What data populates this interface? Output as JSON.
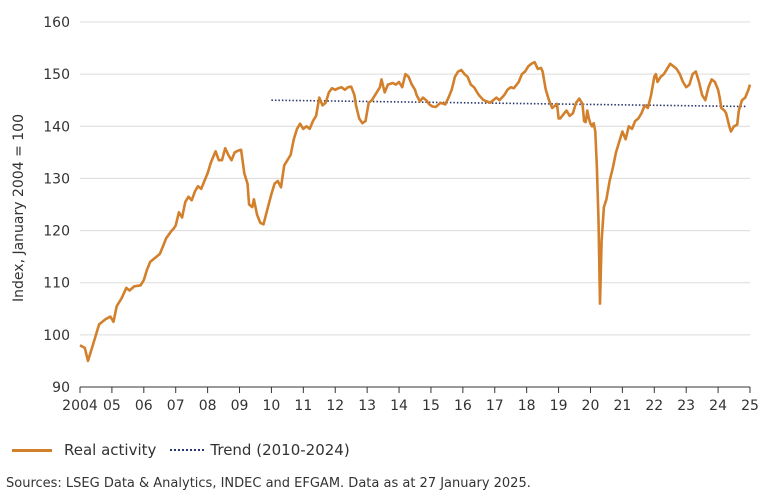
{
  "chart_data": {
    "type": "line",
    "title": "",
    "xlabel": "",
    "ylabel": "Index, January 2004 = 100",
    "ylim": [
      90,
      160
    ],
    "yticks": [
      90,
      100,
      110,
      120,
      130,
      140,
      150,
      160
    ],
    "xlim": [
      2004,
      2025
    ],
    "x_tick_labels": [
      "2004",
      "05",
      "06",
      "07",
      "08",
      "09",
      "10",
      "11",
      "12",
      "13",
      "14",
      "15",
      "16",
      "17",
      "18",
      "19",
      "20",
      "21",
      "22",
      "23",
      "24",
      "25"
    ],
    "grid": "horizontal",
    "legend_position": "bottom-left",
    "series": [
      {
        "name": "Real activity",
        "color": "#d3802c",
        "style": "solid",
        "points": [
          [
            2004.0,
            98
          ],
          [
            2004.15,
            97.5
          ],
          [
            2004.25,
            95
          ],
          [
            2004.4,
            98
          ],
          [
            2004.6,
            102
          ],
          [
            2004.8,
            103
          ],
          [
            2004.95,
            103.5
          ],
          [
            2005.05,
            102.5
          ],
          [
            2005.15,
            105.5
          ],
          [
            2005.3,
            107
          ],
          [
            2005.45,
            109
          ],
          [
            2005.55,
            108.5
          ],
          [
            2005.7,
            109.3
          ],
          [
            2005.9,
            109.5
          ],
          [
            2006.0,
            110.5
          ],
          [
            2006.1,
            112.5
          ],
          [
            2006.2,
            114
          ],
          [
            2006.3,
            114.5
          ],
          [
            2006.4,
            115
          ],
          [
            2006.5,
            115.5
          ],
          [
            2006.6,
            117
          ],
          [
            2006.7,
            118.5
          ],
          [
            2006.85,
            119.8
          ],
          [
            2006.95,
            120.5
          ],
          [
            2007.0,
            121
          ],
          [
            2007.1,
            123.5
          ],
          [
            2007.2,
            122.5
          ],
          [
            2007.3,
            125.5
          ],
          [
            2007.4,
            126.5
          ],
          [
            2007.5,
            125.8
          ],
          [
            2007.6,
            127.5
          ],
          [
            2007.7,
            128.5
          ],
          [
            2007.8,
            128
          ],
          [
            2007.9,
            129.5
          ],
          [
            2008.0,
            131
          ],
          [
            2008.1,
            133
          ],
          [
            2008.2,
            134.5
          ],
          [
            2008.25,
            135.2
          ],
          [
            2008.35,
            133.5
          ],
          [
            2008.45,
            133.5
          ],
          [
            2008.55,
            135.8
          ],
          [
            2008.65,
            134.5
          ],
          [
            2008.75,
            133.5
          ],
          [
            2008.85,
            135
          ],
          [
            2008.95,
            135.3
          ],
          [
            2009.05,
            135.5
          ],
          [
            2009.15,
            131
          ],
          [
            2009.25,
            129
          ],
          [
            2009.3,
            125
          ],
          [
            2009.4,
            124.5
          ],
          [
            2009.45,
            126
          ],
          [
            2009.55,
            123
          ],
          [
            2009.65,
            121.5
          ],
          [
            2009.75,
            121.2
          ],
          [
            2009.85,
            123.5
          ],
          [
            2010.0,
            127
          ],
          [
            2010.1,
            129
          ],
          [
            2010.2,
            129.5
          ],
          [
            2010.3,
            128.3
          ],
          [
            2010.4,
            132.5
          ],
          [
            2010.5,
            133.5
          ],
          [
            2010.6,
            134.5
          ],
          [
            2010.7,
            137.5
          ],
          [
            2010.8,
            139.5
          ],
          [
            2010.9,
            140.5
          ],
          [
            2011.0,
            139.5
          ],
          [
            2011.1,
            140
          ],
          [
            2011.2,
            139.5
          ],
          [
            2011.3,
            141
          ],
          [
            2011.4,
            142
          ],
          [
            2011.5,
            145.5
          ],
          [
            2011.6,
            144
          ],
          [
            2011.7,
            144.5
          ],
          [
            2011.8,
            146.5
          ],
          [
            2011.9,
            147.3
          ],
          [
            2012.0,
            147
          ],
          [
            2012.1,
            147.3
          ],
          [
            2012.2,
            147.5
          ],
          [
            2012.3,
            147
          ],
          [
            2012.4,
            147.5
          ],
          [
            2012.5,
            147.6
          ],
          [
            2012.6,
            146
          ],
          [
            2012.65,
            144
          ],
          [
            2012.75,
            141.5
          ],
          [
            2012.85,
            140.6
          ],
          [
            2012.95,
            141
          ],
          [
            2013.05,
            144.5
          ],
          [
            2013.15,
            145
          ],
          [
            2013.3,
            146.5
          ],
          [
            2013.4,
            147.5
          ],
          [
            2013.45,
            149
          ],
          [
            2013.55,
            146.5
          ],
          [
            2013.65,
            148
          ],
          [
            2013.8,
            148.3
          ],
          [
            2013.9,
            148
          ],
          [
            2014.0,
            148.5
          ],
          [
            2014.1,
            147.5
          ],
          [
            2014.2,
            150
          ],
          [
            2014.3,
            149.5
          ],
          [
            2014.4,
            148
          ],
          [
            2014.5,
            147
          ],
          [
            2014.55,
            146
          ],
          [
            2014.65,
            144.8
          ],
          [
            2014.75,
            145.5
          ],
          [
            2014.85,
            145
          ],
          [
            2014.95,
            144.2
          ],
          [
            2015.05,
            143.8
          ],
          [
            2015.15,
            143.7
          ],
          [
            2015.3,
            144.5
          ],
          [
            2015.45,
            144.2
          ],
          [
            2015.55,
            145.5
          ],
          [
            2015.65,
            147
          ],
          [
            2015.75,
            149.5
          ],
          [
            2015.85,
            150.5
          ],
          [
            2015.95,
            150.8
          ],
          [
            2016.05,
            150
          ],
          [
            2016.15,
            149.5
          ],
          [
            2016.25,
            148
          ],
          [
            2016.35,
            147.5
          ],
          [
            2016.5,
            146
          ],
          [
            2016.65,
            145
          ],
          [
            2016.75,
            144.8
          ],
          [
            2016.85,
            144.5
          ],
          [
            2016.95,
            145
          ],
          [
            2017.05,
            145.5
          ],
          [
            2017.15,
            145
          ],
          [
            2017.3,
            146
          ],
          [
            2017.4,
            147
          ],
          [
            2017.5,
            147.5
          ],
          [
            2017.6,
            147.3
          ],
          [
            2017.75,
            148.5
          ],
          [
            2017.85,
            150
          ],
          [
            2017.95,
            150.5
          ],
          [
            2018.05,
            151.5
          ],
          [
            2018.15,
            152
          ],
          [
            2018.25,
            152.3
          ],
          [
            2018.35,
            151
          ],
          [
            2018.45,
            151.2
          ],
          [
            2018.5,
            150.5
          ],
          [
            2018.6,
            147
          ],
          [
            2018.7,
            145
          ],
          [
            2018.8,
            143.5
          ],
          [
            2018.9,
            144
          ],
          [
            2018.95,
            144.3
          ],
          [
            2019.0,
            141.5
          ],
          [
            2019.05,
            141.5
          ],
          [
            2019.15,
            142.3
          ],
          [
            2019.25,
            143
          ],
          [
            2019.35,
            142
          ],
          [
            2019.45,
            142.5
          ],
          [
            2019.55,
            144.5
          ],
          [
            2019.65,
            145.3
          ],
          [
            2019.75,
            144.3
          ],
          [
            2019.8,
            141
          ],
          [
            2019.85,
            140.8
          ],
          [
            2019.9,
            143
          ],
          [
            2019.95,
            141.5
          ],
          [
            2020.0,
            140.5
          ],
          [
            2020.05,
            140
          ],
          [
            2020.1,
            140.6
          ],
          [
            2020.15,
            139
          ],
          [
            2020.2,
            132
          ],
          [
            2020.25,
            122
          ],
          [
            2020.3,
            106
          ],
          [
            2020.35,
            118
          ],
          [
            2020.42,
            124.5
          ],
          [
            2020.5,
            126
          ],
          [
            2020.6,
            129.5
          ],
          [
            2020.7,
            132
          ],
          [
            2020.8,
            135
          ],
          [
            2020.9,
            137
          ],
          [
            2021.0,
            139
          ],
          [
            2021.1,
            137.5
          ],
          [
            2021.2,
            140
          ],
          [
            2021.3,
            139.5
          ],
          [
            2021.4,
            141
          ],
          [
            2021.5,
            141.5
          ],
          [
            2021.6,
            142.5
          ],
          [
            2021.7,
            144
          ],
          [
            2021.8,
            143.5
          ],
          [
            2021.9,
            146
          ],
          [
            2022.0,
            149.5
          ],
          [
            2022.05,
            150
          ],
          [
            2022.1,
            148.5
          ],
          [
            2022.2,
            149.5
          ],
          [
            2022.3,
            150
          ],
          [
            2022.4,
            151
          ],
          [
            2022.5,
            152
          ],
          [
            2022.6,
            151.5
          ],
          [
            2022.7,
            151
          ],
          [
            2022.8,
            150
          ],
          [
            2022.9,
            148.5
          ],
          [
            2023.0,
            147.5
          ],
          [
            2023.1,
            148
          ],
          [
            2023.2,
            150
          ],
          [
            2023.3,
            150.5
          ],
          [
            2023.4,
            148.5
          ],
          [
            2023.5,
            146
          ],
          [
            2023.6,
            145
          ],
          [
            2023.7,
            147.5
          ],
          [
            2023.8,
            149
          ],
          [
            2023.9,
            148.5
          ],
          [
            2024.0,
            147
          ],
          [
            2024.05,
            145.5
          ],
          [
            2024.1,
            143.5
          ],
          [
            2024.2,
            143
          ],
          [
            2024.25,
            142.5
          ],
          [
            2024.35,
            140
          ],
          [
            2024.4,
            139
          ],
          [
            2024.5,
            140
          ],
          [
            2024.6,
            140.3
          ],
          [
            2024.65,
            143
          ],
          [
            2024.75,
            145
          ],
          [
            2024.85,
            145.5
          ],
          [
            2024.95,
            147
          ],
          [
            2025.0,
            148
          ]
        ]
      },
      {
        "name": "Trend (2010-2024)",
        "color": "#27366b",
        "style": "dotted",
        "points": [
          [
            2010.0,
            145.0
          ],
          [
            2024.9,
            143.8
          ]
        ]
      }
    ]
  },
  "legend": {
    "real_activity": "Real activity",
    "trend": "Trend (2010-2024)"
  },
  "source": "Sources: LSEG Data & Analytics, INDEC and EFGAM. Data as at 27 January 2025."
}
